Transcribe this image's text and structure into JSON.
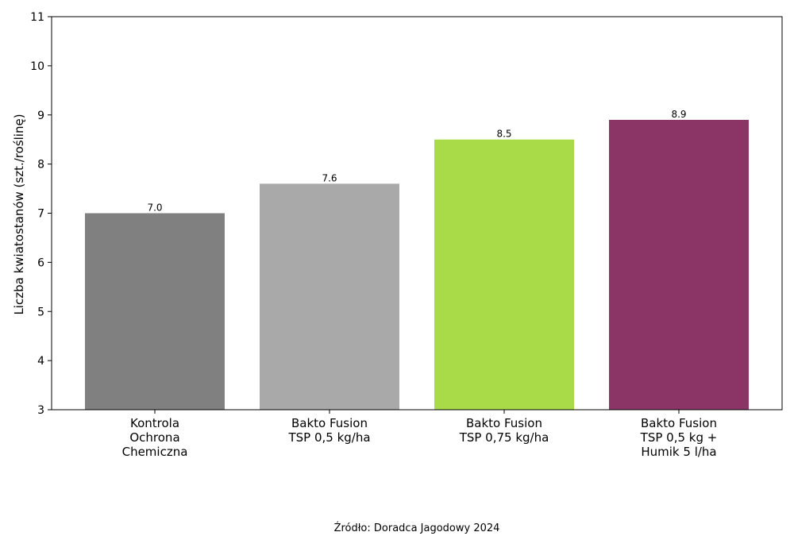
{
  "chart_data": {
    "type": "bar",
    "categories": [
      [
        "Kontrola",
        "Ochrona",
        "Chemiczna"
      ],
      [
        "Bakto Fusion",
        "TSP 0,5 kg/ha"
      ],
      [
        "Bakto Fusion",
        "TSP 0,75 kg/ha"
      ],
      [
        "Bakto Fusion",
        "TSP 0,5 kg +",
        "Humik 5 l/ha"
      ]
    ],
    "values": [
      7.0,
      7.6,
      8.5,
      8.9
    ],
    "value_labels": [
      "7.0",
      "7.6",
      "8.5",
      "8.9"
    ],
    "colors": [
      "#808080",
      "#a9a9a9",
      "#a8db47",
      "#8b3466"
    ],
    "ylabel": "Liczba kwiatostanów (szt./roślinę)",
    "xlabel": "",
    "ylim": [
      3,
      11
    ],
    "yticks": [
      3,
      4,
      5,
      6,
      7,
      8,
      9,
      10,
      11
    ],
    "grid": false,
    "legend": "none"
  },
  "source": "Źródło: Doradca Jagodowy 2024"
}
